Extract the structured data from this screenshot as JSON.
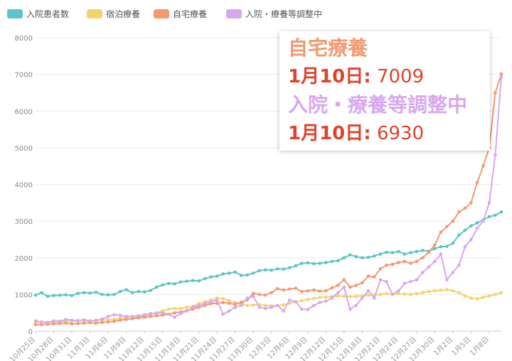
{
  "colors": {
    "inpatients": "#5ec4c6",
    "hotel": "#f5d26e",
    "home": "#f29a70",
    "adjusting": "#d7a8ee"
  },
  "tooltip": {
    "home_title": "自宅療養",
    "home_date": "1月10日:",
    "home_value": "7009",
    "adjust_title": "入院・療養等調整中",
    "adjust_date": "1月10日:",
    "adjust_value": "6930"
  },
  "chart_data": {
    "type": "line",
    "ylim": [
      0,
      8000
    ],
    "yticks": [
      0,
      1000,
      2000,
      3000,
      4000,
      5000,
      6000,
      7000,
      8000
    ],
    "legend_position": "top-left",
    "grid": true,
    "x_labels": [
      "10月25日",
      "10月28日",
      "10月31日",
      "11月3日",
      "11月6日",
      "11月9日",
      "11月12日",
      "11月15日",
      "11月18日",
      "11月21日",
      "11月24日",
      "11月27日",
      "11月30日",
      "12月3日",
      "12月6日",
      "12月9日",
      "12月12日",
      "12月15日",
      "12月18日",
      "12月21日",
      "12月24日",
      "12月27日",
      "12月30日",
      "1月2日",
      "1月5日",
      "1月8日"
    ],
    "x": [
      "10/25",
      "10/26",
      "10/27",
      "10/28",
      "10/29",
      "10/30",
      "10/31",
      "11/1",
      "11/2",
      "11/3",
      "11/4",
      "11/5",
      "11/6",
      "11/7",
      "11/8",
      "11/9",
      "11/10",
      "11/11",
      "11/12",
      "11/13",
      "11/14",
      "11/15",
      "11/16",
      "11/17",
      "11/18",
      "11/19",
      "11/20",
      "11/21",
      "11/22",
      "11/23",
      "11/24",
      "11/25",
      "11/26",
      "11/27",
      "11/28",
      "11/29",
      "11/30",
      "12/1",
      "12/2",
      "12/3",
      "12/4",
      "12/5",
      "12/6",
      "12/7",
      "12/8",
      "12/9",
      "12/10",
      "12/11",
      "12/12",
      "12/13",
      "12/14",
      "12/15",
      "12/16",
      "12/17",
      "12/18",
      "12/19",
      "12/20",
      "12/21",
      "12/22",
      "12/23",
      "12/24",
      "12/25",
      "12/26",
      "12/27",
      "12/28",
      "12/29",
      "12/30",
      "12/31",
      "1/1",
      "1/2",
      "1/3",
      "1/4",
      "1/5",
      "1/6",
      "1/7",
      "1/8",
      "1/9",
      "1/10"
    ],
    "series": [
      {
        "name": "入院患者数",
        "key": "inpatients",
        "values": [
          980,
          1050,
          950,
          970,
          980,
          990,
          970,
          1030,
          1050,
          1040,
          1060,
          1000,
          990,
          1000,
          1080,
          1130,
          1050,
          1080,
          1070,
          1110,
          1200,
          1260,
          1300,
          1290,
          1340,
          1360,
          1380,
          1370,
          1430,
          1480,
          1500,
          1560,
          1580,
          1610,
          1520,
          1530,
          1580,
          1650,
          1670,
          1660,
          1700,
          1690,
          1730,
          1780,
          1850,
          1860,
          1840,
          1850,
          1870,
          1900,
          1920,
          2000,
          2080,
          2030,
          2000,
          2010,
          2050,
          2100,
          2150,
          2140,
          2170,
          2100,
          2140,
          2170,
          2200,
          2180,
          2250,
          2300,
          2310,
          2400,
          2620,
          2750,
          2870,
          2950,
          3030,
          3120,
          3160,
          3250
        ]
      },
      {
        "name": "宿泊療養",
        "key": "hotel",
        "values": [
          240,
          250,
          245,
          250,
          260,
          270,
          270,
          280,
          290,
          280,
          300,
          300,
          310,
          320,
          350,
          370,
          380,
          400,
          420,
          450,
          500,
          550,
          600,
          620,
          620,
          650,
          680,
          750,
          800,
          850,
          900,
          890,
          830,
          780,
          720,
          700,
          710,
          720,
          700,
          690,
          700,
          720,
          760,
          800,
          830,
          860,
          890,
          920,
          930,
          940,
          960,
          950,
          940,
          950,
          960,
          980,
          980,
          1000,
          1020,
          1000,
          1020,
          1010,
          1000,
          1020,
          1050,
          1080,
          1100,
          1120,
          1130,
          1100,
          1050,
          960,
          900,
          880,
          920,
          960,
          1000,
          1050
        ]
      },
      {
        "name": "自宅療養",
        "key": "home",
        "values": [
          180,
          180,
          190,
          200,
          210,
          220,
          200,
          210,
          220,
          230,
          220,
          240,
          250,
          270,
          300,
          320,
          340,
          360,
          380,
          400,
          420,
          440,
          460,
          500,
          520,
          560,
          600,
          650,
          700,
          750,
          760,
          780,
          760,
          730,
          790,
          850,
          1030,
          1000,
          980,
          1050,
          1160,
          1120,
          1150,
          1170,
          1080,
          1100,
          1120,
          1090,
          1100,
          1180,
          1250,
          1400,
          1200,
          1250,
          1320,
          1500,
          1480,
          1700,
          1800,
          1820,
          1870,
          1900,
          1850,
          1900,
          2000,
          2150,
          2350,
          2700,
          2850,
          3000,
          3250,
          3350,
          3500,
          4050,
          4500,
          5000,
          6500,
          7009
        ]
      },
      {
        "name": "入院・療養等調整中",
        "key": "adjusting",
        "values": [
          280,
          250,
          230,
          280,
          270,
          320,
          300,
          290,
          310,
          280,
          290,
          330,
          400,
          450,
          430,
          400,
          400,
          420,
          450,
          480,
          490,
          500,
          460,
          380,
          480,
          550,
          650,
          700,
          750,
          800,
          840,
          460,
          550,
          650,
          700,
          900,
          950,
          650,
          620,
          650,
          700,
          550,
          850,
          800,
          600,
          590,
          700,
          780,
          820,
          900,
          1050,
          1200,
          600,
          700,
          900,
          1100,
          900,
          1400,
          1350,
          1000,
          1100,
          1300,
          1350,
          1400,
          1600,
          1750,
          1900,
          2100,
          1400,
          1600,
          1800,
          2300,
          2500,
          2800,
          3000,
          3500,
          4800,
          6930
        ]
      }
    ]
  }
}
